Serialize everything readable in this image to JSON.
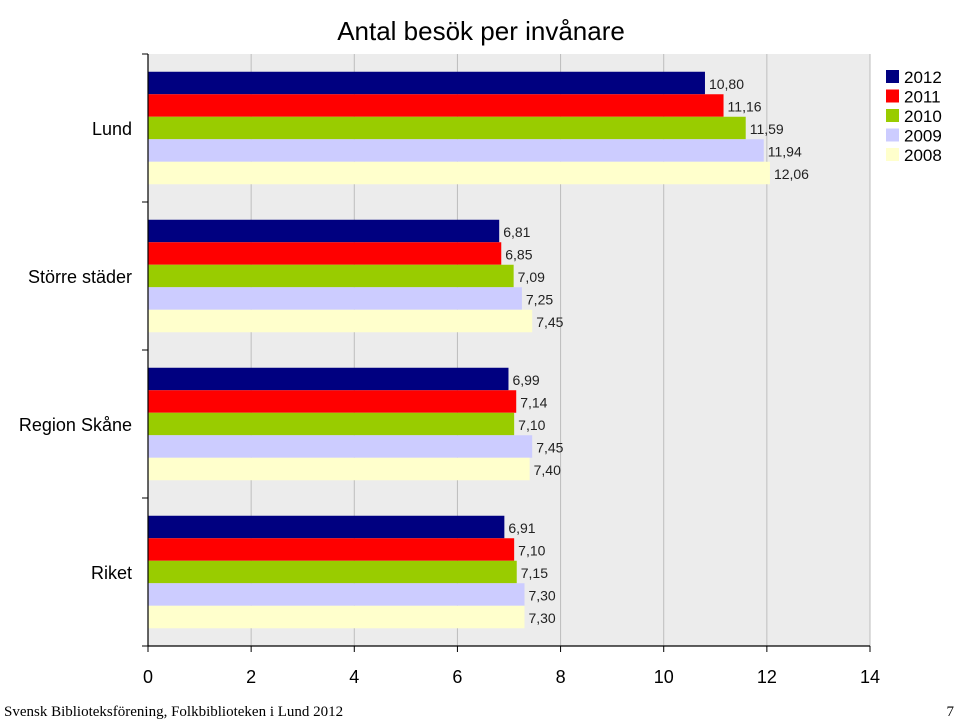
{
  "chart_data": {
    "type": "bar",
    "orientation": "horizontal",
    "title": "Antal besök per invånare",
    "categories": [
      "Lund",
      "Större städer",
      "Region Skåne",
      "Riket"
    ],
    "series": [
      {
        "name": "2012",
        "color": "#000080",
        "values": [
          10.8,
          6.81,
          6.99,
          6.91
        ],
        "labels": [
          "10,80",
          "6,81",
          "6,99",
          "6,91"
        ]
      },
      {
        "name": "2011",
        "color": "#ff0000",
        "values": [
          11.16,
          6.85,
          7.14,
          7.1
        ],
        "labels": [
          "11,16",
          "6,85",
          "7,14",
          "7,10"
        ]
      },
      {
        "name": "2010",
        "color": "#99cc00",
        "values": [
          11.59,
          7.09,
          7.1,
          7.15
        ],
        "labels": [
          "11,59",
          "7,09",
          "7,10",
          "7,15"
        ]
      },
      {
        "name": "2009",
        "color": "#ccccff",
        "values": [
          11.94,
          7.25,
          7.45,
          7.3
        ],
        "labels": [
          "11,94",
          "7,25",
          "7,45",
          "7,30"
        ]
      },
      {
        "name": "2008",
        "color": "#ffffcc",
        "values": [
          12.06,
          7.45,
          7.4,
          7.3
        ],
        "labels": [
          "12,06",
          "7,45",
          "7,40",
          "7,30"
        ]
      }
    ],
    "xlim": [
      0,
      14
    ],
    "xticks": [
      "0",
      "2",
      "4",
      "6",
      "8",
      "10",
      "12",
      "14"
    ],
    "grid": true,
    "legend": "top-right",
    "background_color": "#ececec"
  },
  "footer": {
    "text": "Svensk Biblioteksförening, Folkbiblioteken i Lund 2012",
    "page_number": "7"
  }
}
